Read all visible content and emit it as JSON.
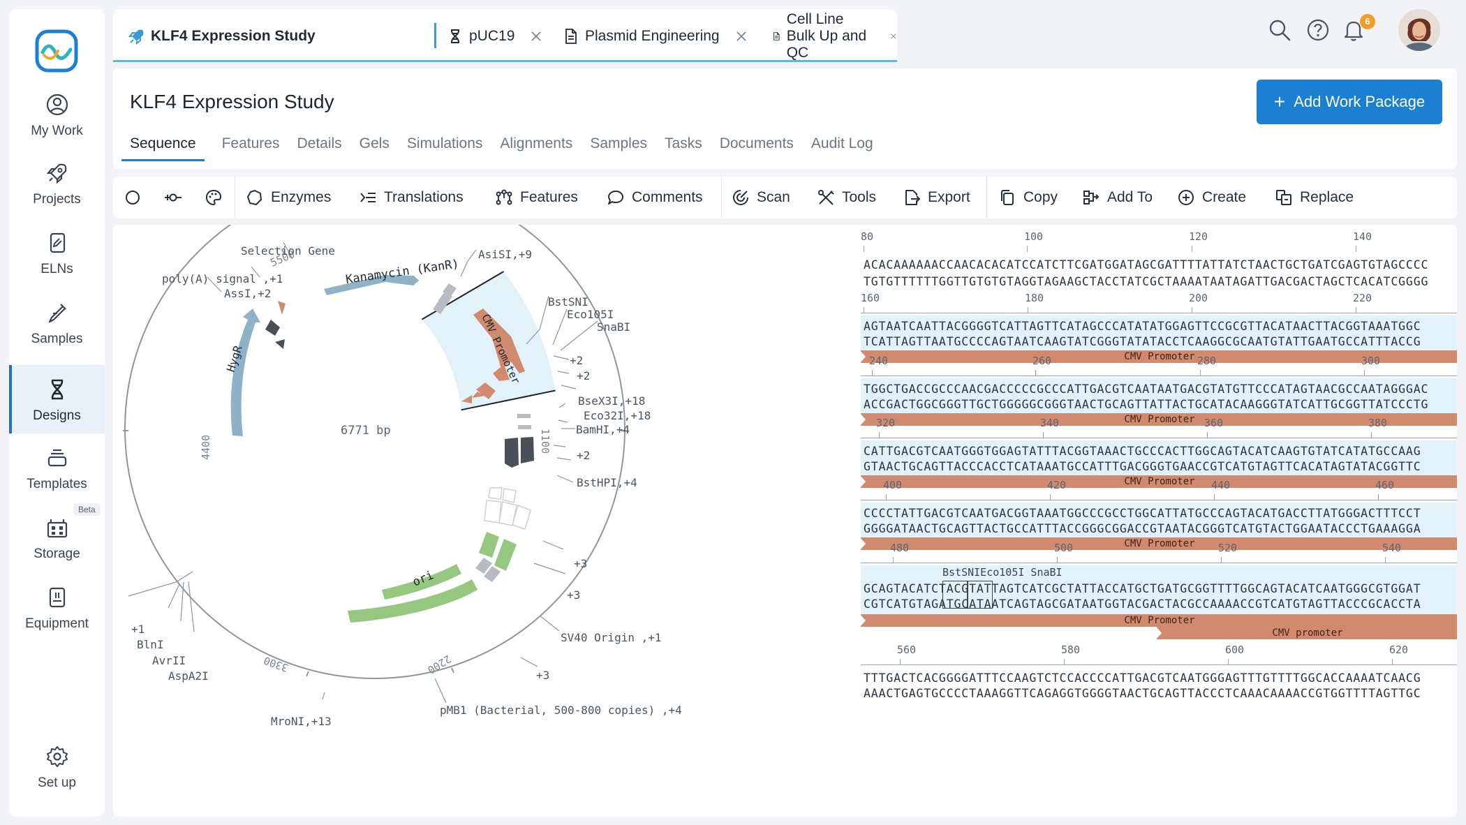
{
  "file_tabs": [
    {
      "label": "KLF4 Expression Study",
      "icon": "rocket-icon",
      "active": true
    },
    {
      "label": "pUC19",
      "icon": "dna-icon"
    },
    {
      "label": "Plasmid Engineering",
      "icon": "document-icon"
    },
    {
      "label": "Cell Line Bulk Up and QC",
      "icon": "document-icon"
    }
  ],
  "notifications_count": "6",
  "sidebar": {
    "items": [
      {
        "label": "My Work",
        "icon": "user-circle-icon"
      },
      {
        "label": "Projects",
        "icon": "rocket-icon"
      },
      {
        "label": "ELNs",
        "icon": "notebook-icon"
      },
      {
        "label": "Samples",
        "icon": "pipette-icon"
      },
      {
        "label": "Designs",
        "icon": "dna-icon",
        "active": true
      },
      {
        "label": "Templates",
        "icon": "stack-icon"
      },
      {
        "label": "Storage",
        "icon": "freezer-icon",
        "badge": "Beta"
      },
      {
        "label": "Equipment",
        "icon": "device-icon"
      }
    ],
    "setup_label": "Set up"
  },
  "header": {
    "title": "KLF4 Expression Study",
    "add_button": "Add Work Package",
    "tabs": [
      "Sequence",
      "Features",
      "Details",
      "Gels",
      "Simulations",
      "Alignments",
      "Samples",
      "Tasks",
      "Documents",
      "Audit Log"
    ],
    "active_tab": "Sequence"
  },
  "toolbar": {
    "buttons": [
      "Enzymes",
      "Translations",
      "Features",
      "Comments",
      "Scan",
      "Tools",
      "Export",
      "Copy",
      "Add To",
      "Create",
      "Replace"
    ]
  },
  "plasmid_map": {
    "total_length": "6771 bp",
    "ticks": [
      "5500",
      "4400",
      "3300",
      "2200",
      "1100"
    ],
    "features": {
      "kanr": "Kanamycin (KanR)",
      "hygr": "HygR",
      "cmv": "CMV Promoter",
      "ori": "ori"
    },
    "labels": {
      "selection_gene": "Selection Gene",
      "polya": "poly(A) signal ,+1",
      "assi": "AssI,+2",
      "asisi": "AsiSI,+9",
      "bstsni": "BstSNI",
      "eco105i": "Eco105I",
      "snabi": "SnaBI",
      "plus2a": "+2",
      "plus2b": "+2",
      "bsex3i": "BseX3I,+18",
      "eco32i": "Eco32I,+18",
      "bamhi": "BamHI,+4",
      "plus2c": "+2",
      "bsthpi": "BstHPI,+4",
      "plus3a": "+3",
      "plus3b": "+3",
      "sv40": "SV40 Origin ,+1",
      "plus3c": "+3",
      "pmb1": "pMB1 (Bacterial, 500-800 copies) ,+4",
      "mroni": "MroNI,+13",
      "plus1": "+1",
      "blni": "BlnI",
      "avrii": "AvrII",
      "aspa2i": "AspA2I"
    }
  },
  "sequence_view": {
    "blocks": [
      {
        "ticks": [
          "80",
          "100",
          "120",
          "140"
        ],
        "top": "ACACAAAAAACCAACACACATCCATCTTCGATGGATAGCGATTTTATTATCTAACTGCTGATCGAGTGTAGCCCC",
        "bottom": "TGTGTTTTTTGGTTGTGTGTAGGTAGAAGCTACCTATCGCTAAAATAATAGATTGACGACTAGCTCACATCGGGG"
      },
      {
        "ticks": [
          "160",
          "180",
          "200",
          "220"
        ],
        "top": "AGTAATCAATTACGGGGTCATTAGTTCATAGCCCATATATGGAGTTCCGCGTTACATAACTTACGGTAAATGGC",
        "bottom": "TCATTAGTTAATGCCCCAGTAATCAAGTATCGGGTATATACCTCAAGGCGCAATGTATTGAATGCCATTTACCG",
        "feature": "CMV Promoter"
      },
      {
        "ticks": [
          "240",
          "260",
          "280",
          "300"
        ],
        "top": "TGGCTGACCGCCCAACGACCCCCGCCCATTGACGTCAATAATGACGTATGTTCCCATAGTAACGCCAATAGGGAC",
        "bottom": "ACCGACTGGCGGGTTGCTGGGGGCGGGTAACTGCAGTTATTACTGCATACAAGGGTATCATTGCGGTTATCCCTG",
        "feature": "CMV Promoter"
      },
      {
        "ticks": [
          "320",
          "340",
          "360",
          "380"
        ],
        "top": "CATTGACGTCAATGGGTGGAGTATTTACGGTAAACTGCCCACTTGGCAGTACATCAAGTGTATCATATGCCAAG",
        "bottom": "GTAACTGCAGTTACCCACCTCATAAATGCCATTTGACGGGTGAACCGTCATGTAGTTCACATAGTATACGGTTC",
        "feature": "CMV Promoter"
      },
      {
        "ticks": [
          "400",
          "420",
          "440",
          "460"
        ],
        "top": "CCCCTATTGACGTCAATGACGGTAAATGGCCCGCCTGGCATTATGCCCAGTACATGACCTTATGGGACTTTCCT",
        "bottom": "GGGGATAACTGCAGTTACTGCCATTTACCGGGCGGACCGTAATACGGGTCATGTACTGGAATACCCTGAAAGGA",
        "feature": "CMV Promoter"
      },
      {
        "ticks": [
          "480",
          "500",
          "520",
          "540"
        ],
        "top": "GCAGTACATCTACGTATTAGTCATCGCTATTACCATGCTGATGCGGTTTTGGCAGTACATCAATGGGCGTGGAT",
        "bottom": "CGTCATGTAGATGCATAATCAGTAGCGATAATGGTACGACTACGCCAAAACCGTCATGTAGTTACCCGCACCTA",
        "feature": "CMV Promoter",
        "feature2": "CMV promoter",
        "sites": "BstSNIEco105I SnaBI"
      },
      {
        "ticks": [
          "560",
          "580",
          "600",
          "620"
        ],
        "top": "TTTGACTCACGGGGATTTCCAAGTCTCCACCCCATTGACGTCAATGGGAGTTTGTTTTGGCACCAAAATCAACG",
        "bottom": "AAACTGAGTGCCCCTAAAGGTTCAGAGGTGGGGTAACTGCAGTTACCCTCAAACAAAACCGTGGTTTTAGTTGC"
      }
    ]
  },
  "colors": {
    "accent": "#1b80d2",
    "cmv": "#d28a6e",
    "ori": "#95c77e",
    "hygr": "#8fb2c6",
    "highlight": "#e2f2fb"
  }
}
